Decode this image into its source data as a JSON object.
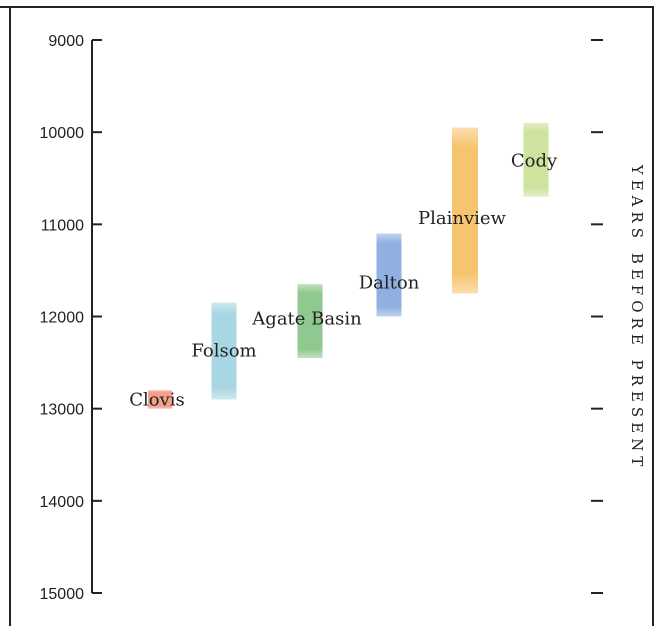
{
  "chart_data": {
    "type": "range-bar",
    "title": "",
    "ylabel": "YEARS BEFORE PRESENT",
    "ylim": [
      9000,
      15000
    ],
    "y_inverted": true,
    "yticks": [
      9000,
      10000,
      11000,
      12000,
      13000,
      14000,
      15000
    ],
    "ytick_labels": [
      "9000",
      "10000",
      "11000",
      "12000",
      "13000",
      "14000",
      "15000"
    ],
    "grid": false,
    "series": [
      {
        "name": "Clovis",
        "start": 12800,
        "end": 13000,
        "color": "#f2a08c"
      },
      {
        "name": "Folsom",
        "start": 11850,
        "end": 12900,
        "color": "#a9d6e3"
      },
      {
        "name": "Agate Basin",
        "start": 11650,
        "end": 12450,
        "color": "#8fc98f"
      },
      {
        "name": "Dalton",
        "start": 11100,
        "end": 12000,
        "color": "#8fb0e0"
      },
      {
        "name": "Plainview",
        "start": 9950,
        "end": 11750,
        "color": "#f7c46e"
      },
      {
        "name": "Cody",
        "start": 9900,
        "end": 10700,
        "color": "#cfe39f"
      }
    ]
  }
}
